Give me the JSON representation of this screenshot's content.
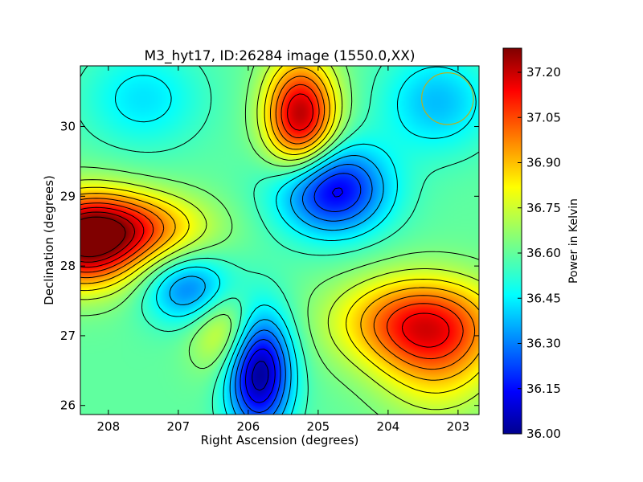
{
  "chart_data": {
    "type": "heatmap",
    "title": "M3_hyt17, ID:26284 image (1550.0,XX)",
    "xlabel": "Right Ascension (degrees)",
    "ylabel": "Declination (degrees)",
    "xlim": [
      208.4,
      202.7
    ],
    "ylim": [
      25.87,
      30.87
    ],
    "x_ticks": [
      208,
      207,
      206,
      205,
      204,
      203
    ],
    "y_ticks": [
      26,
      27,
      28,
      29,
      30
    ],
    "colorbar": {
      "label": "Power in Kelvin",
      "min": 36.0,
      "max": 37.28,
      "ticks": [
        "36.00",
        "36.15",
        "36.30",
        "36.45",
        "36.60",
        "36.75",
        "36.90",
        "37.05",
        "37.20"
      ],
      "colormap": "jet"
    },
    "contour_lines": true,
    "background_level": 36.6,
    "features": [
      {
        "kind": "max",
        "ra": 208.35,
        "dec": 28.35,
        "value": 37.25,
        "sigma": [
          0.55,
          0.45
        ]
      },
      {
        "kind": "max",
        "ra": 207.6,
        "dec": 28.55,
        "value": 36.95,
        "sigma": [
          0.7,
          0.35
        ]
      },
      {
        "kind": "max",
        "ra": 205.25,
        "dec": 30.15,
        "value": 37.22,
        "sigma": [
          0.35,
          0.55
        ]
      },
      {
        "kind": "max",
        "ra": 203.6,
        "dec": 27.2,
        "value": 37.0,
        "sigma": [
          0.8,
          0.45
        ]
      },
      {
        "kind": "max",
        "ra": 203.3,
        "dec": 26.7,
        "value": 36.85,
        "sigma": [
          0.6,
          0.6
        ]
      },
      {
        "kind": "max",
        "ra": 206.3,
        "dec": 27.1,
        "value": 36.85,
        "sigma": [
          0.35,
          0.45
        ]
      },
      {
        "kind": "min",
        "ra": 205.85,
        "dec": 26.5,
        "value": 36.0,
        "sigma": [
          0.32,
          0.6
        ]
      },
      {
        "kind": "min",
        "ra": 204.8,
        "dec": 29.1,
        "value": 36.12,
        "sigma": [
          0.55,
          0.45
        ]
      },
      {
        "kind": "min",
        "ra": 206.8,
        "dec": 27.65,
        "value": 36.3,
        "sigma": [
          0.45,
          0.35
        ]
      },
      {
        "kind": "min",
        "ra": 203.3,
        "dec": 30.35,
        "value": 36.4,
        "sigma": [
          0.55,
          0.5
        ]
      },
      {
        "kind": "min",
        "ra": 207.5,
        "dec": 30.4,
        "value": 36.45,
        "sigma": [
          0.6,
          0.5
        ]
      }
    ],
    "beam_circle": {
      "ra": 203.15,
      "dec": 30.4,
      "radius_deg": 0.37,
      "color": "#b5b022"
    }
  }
}
